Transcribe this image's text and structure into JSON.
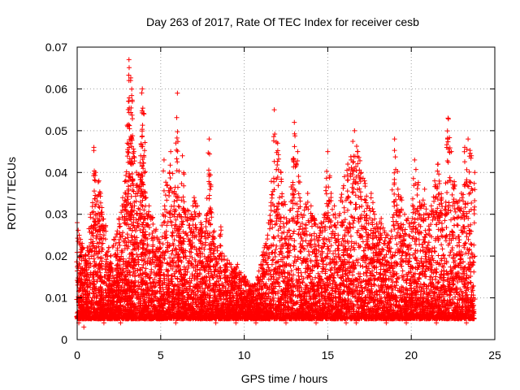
{
  "chart_data": {
    "type": "scatter",
    "title": "Day 263 of 2017, Rate Of TEC Index for receiver cesb",
    "xlabel": "GPS time / hours",
    "ylabel": "ROTI / TECUs",
    "xlim": [
      0,
      25
    ],
    "ylim": [
      0,
      0.07
    ],
    "x_ticks": [
      "0",
      "5",
      "10",
      "15",
      "20",
      "25"
    ],
    "y_ticks": [
      "0",
      "0.01",
      "0.02",
      "0.03",
      "0.04",
      "0.05",
      "0.06",
      "0.07"
    ],
    "grid": true,
    "marker": "+",
    "color": "#ff0000",
    "series": [
      {
        "x": [
          0.0,
          0.2,
          0.3,
          0.5,
          0.6,
          0.8,
          1.0,
          1.1,
          1.3,
          1.4,
          1.5,
          1.7,
          1.9,
          2.0,
          2.2,
          2.4,
          2.5,
          2.7,
          2.9,
          3.0,
          3.1,
          3.2,
          3.3,
          3.4,
          3.6,
          3.8,
          3.9,
          4.0,
          4.1,
          4.3,
          4.5,
          4.7,
          4.9,
          5.0,
          5.2,
          5.4,
          5.6,
          5.8,
          6.0,
          6.1,
          6.3,
          6.4,
          6.6,
          6.8,
          7.0,
          7.2,
          7.4,
          7.5,
          7.7,
          7.9,
          8.0,
          8.2,
          8.4,
          8.6,
          8.8,
          9.0,
          9.2,
          9.4,
          9.6,
          9.8,
          10.0,
          10.2,
          10.4,
          10.6,
          10.8,
          11.0,
          11.2,
          11.4,
          11.6,
          11.8,
          12.0,
          12.2,
          12.4,
          12.6,
          12.8,
          13.0,
          13.2,
          13.4,
          13.6,
          13.8,
          14.0,
          14.2,
          14.4,
          14.6,
          14.8,
          15.0,
          15.2,
          15.4,
          15.6,
          15.8,
          16.0,
          16.2,
          16.4,
          16.6,
          16.8,
          17.0,
          17.2,
          17.4,
          17.6,
          17.8,
          18.0,
          18.2,
          18.4,
          18.6,
          18.8,
          19.0,
          19.2,
          19.4,
          19.6,
          19.8,
          20.0,
          20.2,
          20.4,
          20.6,
          20.8,
          21.0,
          21.2,
          21.4,
          21.6,
          21.8,
          22.0,
          22.2,
          22.4,
          22.6,
          22.8,
          23.0,
          23.2,
          23.4,
          23.6,
          23.8
        ],
        "y": [
          0.028,
          0.024,
          0.023,
          0.02,
          0.022,
          0.03,
          0.046,
          0.04,
          0.038,
          0.035,
          0.03,
          0.027,
          0.022,
          0.02,
          0.024,
          0.026,
          0.029,
          0.032,
          0.038,
          0.047,
          0.067,
          0.062,
          0.057,
          0.045,
          0.037,
          0.044,
          0.06,
          0.054,
          0.034,
          0.032,
          0.029,
          0.026,
          0.024,
          0.022,
          0.043,
          0.037,
          0.045,
          0.035,
          0.059,
          0.03,
          0.044,
          0.033,
          0.031,
          0.029,
          0.034,
          0.032,
          0.028,
          0.026,
          0.027,
          0.048,
          0.037,
          0.026,
          0.022,
          0.027,
          0.02,
          0.019,
          0.018,
          0.017,
          0.018,
          0.016,
          0.015,
          0.014,
          0.013,
          0.013,
          0.015,
          0.018,
          0.022,
          0.025,
          0.032,
          0.055,
          0.047,
          0.04,
          0.033,
          0.028,
          0.033,
          0.052,
          0.045,
          0.03,
          0.031,
          0.035,
          0.032,
          0.029,
          0.027,
          0.028,
          0.03,
          0.045,
          0.035,
          0.032,
          0.028,
          0.034,
          0.039,
          0.042,
          0.043,
          0.05,
          0.045,
          0.04,
          0.038,
          0.032,
          0.035,
          0.03,
          0.027,
          0.029,
          0.026,
          0.025,
          0.026,
          0.048,
          0.036,
          0.034,
          0.03,
          0.029,
          0.028,
          0.043,
          0.037,
          0.032,
          0.036,
          0.03,
          0.032,
          0.038,
          0.042,
          0.034,
          0.03,
          0.053,
          0.045,
          0.037,
          0.033,
          0.035,
          0.046,
          0.048,
          0.044,
          0.04
        ]
      },
      {
        "x": [
          0.1,
          0.4,
          0.7,
          1.2,
          1.6,
          2.1,
          2.6,
          3.1,
          3.5,
          4.2,
          4.8,
          5.3,
          5.9,
          6.5,
          7.1,
          7.6,
          8.3,
          8.9,
          9.5,
          10.1,
          10.7,
          11.3,
          11.9,
          12.5,
          13.1,
          13.7,
          14.3,
          14.9,
          15.5,
          16.1,
          16.7,
          17.3,
          17.9,
          18.5,
          19.1,
          19.7,
          20.3,
          20.9,
          21.5,
          22.1,
          22.7,
          23.3,
          23.7
        ],
        "y": [
          0.004,
          0.003,
          0.005,
          0.006,
          0.004,
          0.005,
          0.004,
          0.006,
          0.005,
          0.007,
          0.005,
          0.006,
          0.004,
          0.007,
          0.005,
          0.006,
          0.004,
          0.005,
          0.004,
          0.005,
          0.004,
          0.005,
          0.006,
          0.004,
          0.005,
          0.005,
          0.004,
          0.006,
          0.005,
          0.004,
          0.004,
          0.005,
          0.006,
          0.004,
          0.005,
          0.004,
          0.006,
          0.005,
          0.004,
          0.005,
          0.006,
          0.004,
          0.005
        ]
      }
    ]
  }
}
